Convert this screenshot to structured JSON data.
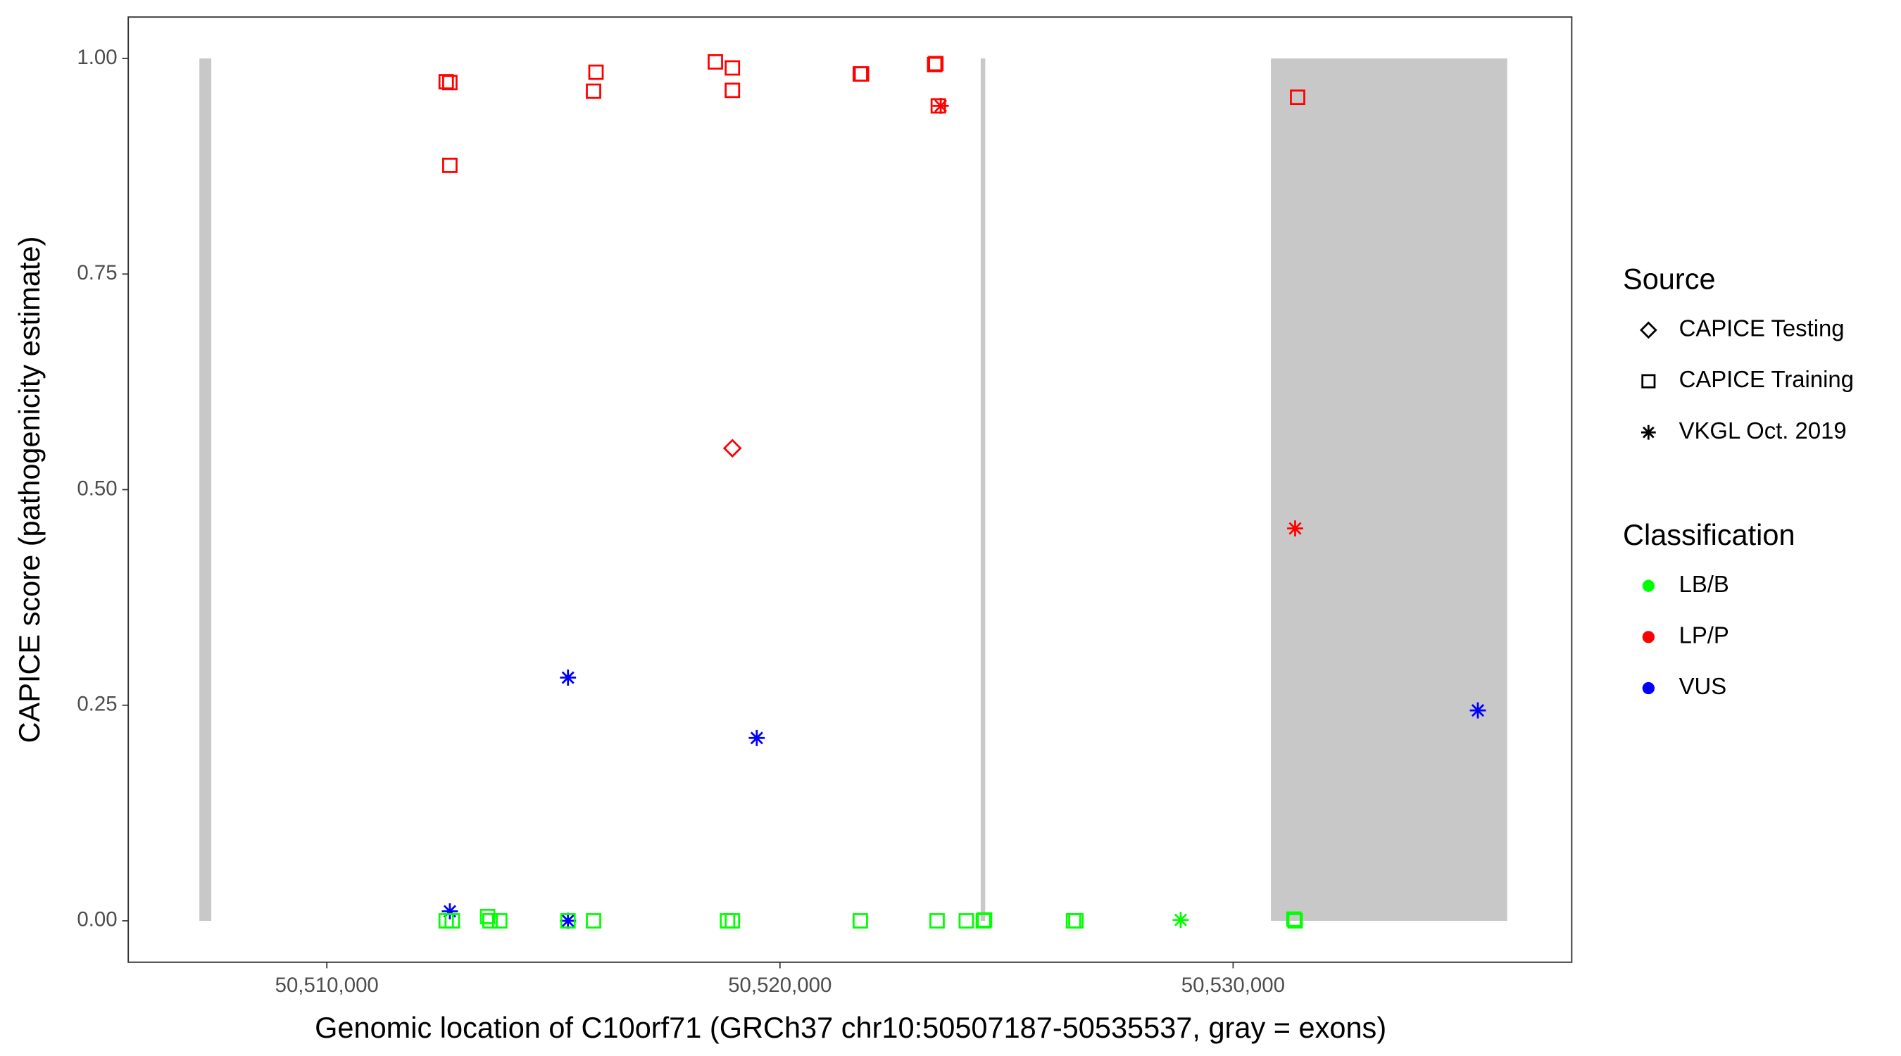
{
  "chart_data": {
    "type": "scatter",
    "xlabel": "Genomic location of C10orf71 (GRCh37 chr10:50507187-50535537, gray = exons)",
    "ylabel": "CAPICE score (pathogenicity estimate)",
    "xlim": [
      50505618,
      50537473
    ],
    "ylim": [
      -0.048,
      1.048
    ],
    "xticks": [
      {
        "value": 50510000,
        "label": "50,510,000"
      },
      {
        "value": 50520000,
        "label": "50,520,000"
      },
      {
        "value": 50530000,
        "label": "50,530,000"
      }
    ],
    "yticks": [
      {
        "value": 0,
        "label": "0.00"
      },
      0.25,
      {
        "value": 0.5,
        "label": "0.50"
      },
      0.75,
      {
        "value": 1,
        "label": "1.00"
      }
    ],
    "grid": false,
    "exon_color": "#c8c8c8",
    "exons": [
      {
        "start": 50507187,
        "end": 50507450
      },
      {
        "start": 50524430,
        "end": 50524530
      },
      {
        "start": 50530834,
        "end": 50536048
      }
    ],
    "shape_legend": {
      "title": "Source",
      "entries": [
        {
          "name": "CAPICE Testing",
          "shape": "diamond"
        },
        {
          "name": "CAPICE Training",
          "shape": "square"
        },
        {
          "name": "VKGL Oct. 2019",
          "shape": "asterisk"
        }
      ]
    },
    "color_legend": {
      "title": "Classification",
      "entries": [
        {
          "name": "LB/B",
          "color": "#00ff00"
        },
        {
          "name": "LP/P",
          "color": "#ff0000"
        },
        {
          "name": "VUS",
          "color": "#0000ff"
        }
      ]
    },
    "series": [
      {
        "source": "CAPICE Training",
        "classification": "LP/P",
        "x": [
          50512634,
          50512715,
          50512715,
          50515940,
          50515886,
          50518574,
          50518950,
          50518950,
          50521773,
          50521800,
          50523413,
          50523440,
          50523494,
          50531423
        ],
        "values": [
          0.973,
          0.972,
          0.876,
          0.984,
          0.962,
          0.996,
          0.989,
          0.963,
          0.982,
          0.982,
          0.993,
          0.994,
          0.945,
          0.955
        ]
      },
      {
        "source": "CAPICE Testing",
        "classification": "LP/P",
        "x": [
          50518950
        ],
        "values": [
          0.548
        ]
      },
      {
        "source": "VKGL Oct. 2019",
        "classification": "LP/P",
        "x": [
          50523547,
          50531369
        ],
        "values": [
          0.945,
          0.455
        ]
      },
      {
        "source": "VKGL Oct. 2019",
        "classification": "VUS",
        "x": [
          50512715,
          50515322,
          50515322,
          50519488,
          50535401
        ],
        "values": [
          0.011,
          0.282,
          0,
          0.212,
          0.244
        ]
      },
      {
        "source": "CAPICE Training",
        "classification": "LB/B",
        "x": [
          50512634,
          50512768,
          50513548,
          50513601,
          50513816,
          50515322,
          50515886,
          50518843,
          50518950,
          50521773,
          50523467,
          50524112,
          50524488,
          50524515,
          50526477,
          50526531,
          50531342,
          50531369
        ],
        "values": [
          0,
          0,
          0.005,
          0,
          0,
          0,
          0,
          0,
          0,
          0,
          0,
          0,
          0,
          0.001,
          0,
          0,
          0.002,
          0
        ]
      },
      {
        "source": "VKGL Oct. 2019",
        "classification": "LB/B",
        "x": [
          50528843
        ],
        "values": [
          0.001
        ]
      }
    ]
  }
}
